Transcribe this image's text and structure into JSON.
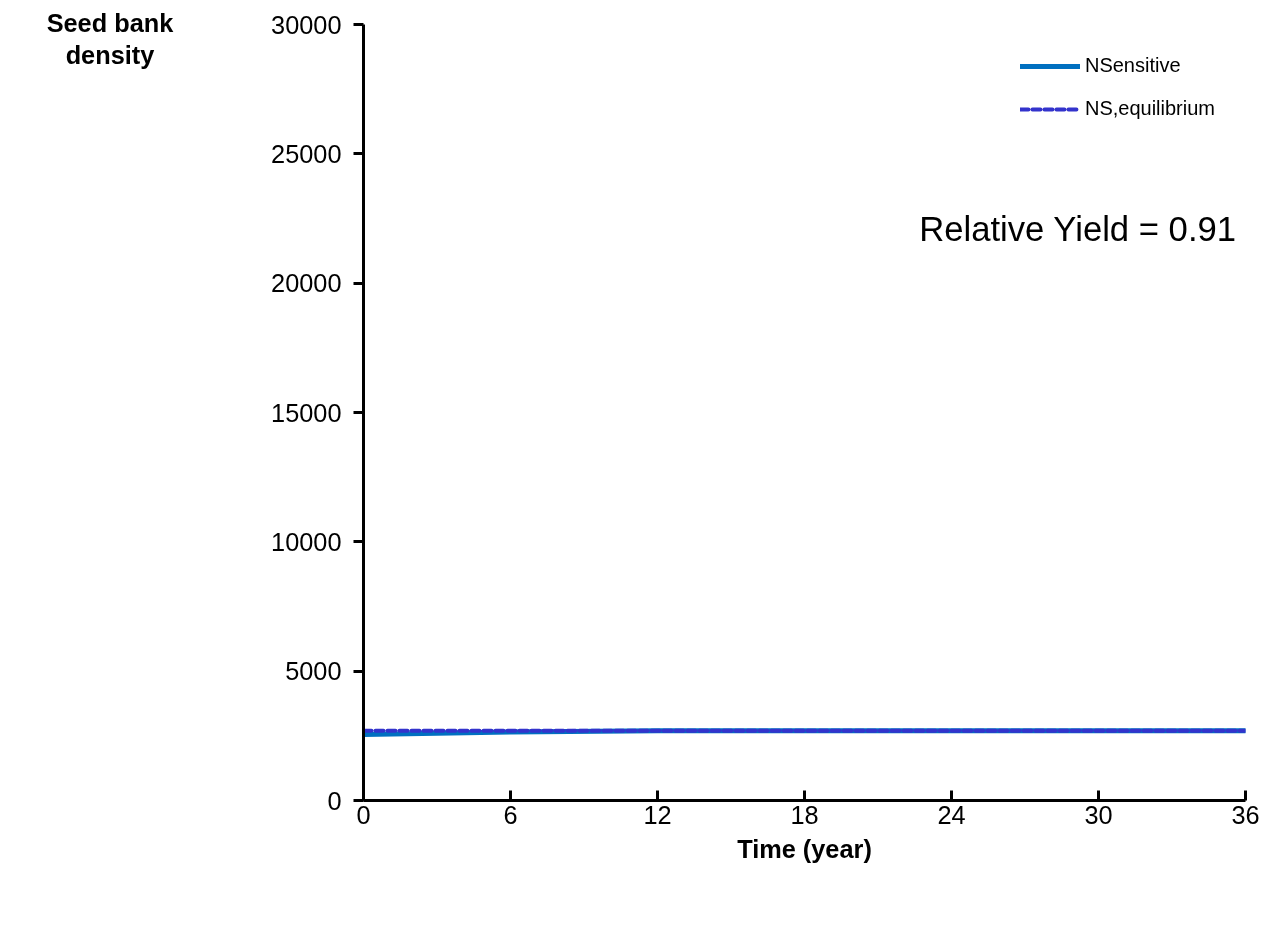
{
  "chart_data": {
    "type": "line",
    "xlabel": "Time (year)",
    "ylabel": "Seed bank density",
    "x": [
      0,
      3,
      6,
      12,
      18,
      24,
      30,
      36
    ],
    "series": [
      {
        "name": "NSensitive",
        "color": "#0070c0",
        "line_style": "solid",
        "values": [
          2550,
          2600,
          2650,
          2700,
          2700,
          2700,
          2700,
          2700
        ]
      },
      {
        "name": "NS,equilibrium",
        "color": "#3333cc",
        "line_style": "dashed",
        "values": [
          2700,
          2700,
          2700,
          2700,
          2700,
          2700,
          2700,
          2700
        ]
      }
    ],
    "xlim": [
      0,
      36
    ],
    "xticks": [
      0,
      6,
      12,
      18,
      24,
      30,
      36
    ],
    "ylim": [
      0,
      30000
    ],
    "yticks": [
      0,
      5000,
      10000,
      15000,
      20000,
      25000,
      30000
    ],
    "annotations": [
      "Relative Yield = 0.91"
    ],
    "legend": "top right",
    "grid": false,
    "marker": "none"
  }
}
